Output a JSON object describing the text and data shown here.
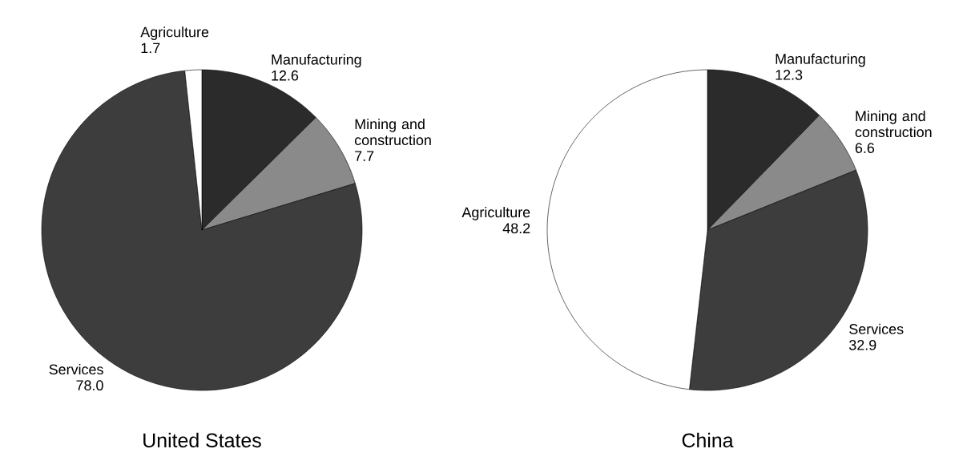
{
  "chart_data": [
    {
      "type": "pie",
      "title": "United States",
      "categories": [
        "Manufacturing",
        "Mining and construction",
        "Services",
        "Agriculture"
      ],
      "values": [
        12.6,
        7.7,
        78.0,
        1.7
      ],
      "value_labels": [
        "12.6",
        "7.7",
        "78.0",
        "1.7"
      ],
      "colors": [
        "#2b2b2b",
        "#8a8a8a",
        "#3d3d3d",
        "#ffffff"
      ]
    },
    {
      "type": "pie",
      "title": "China",
      "categories": [
        "Manufacturing",
        "Mining and construction",
        "Services",
        "Agriculture"
      ],
      "values": [
        12.3,
        6.6,
        32.9,
        48.2
      ],
      "value_labels": [
        "12.3",
        "6.6",
        "32.9",
        "48.2"
      ],
      "colors": [
        "#2b2b2b",
        "#8a8a8a",
        "#3d3d3d",
        "#ffffff"
      ]
    }
  ]
}
